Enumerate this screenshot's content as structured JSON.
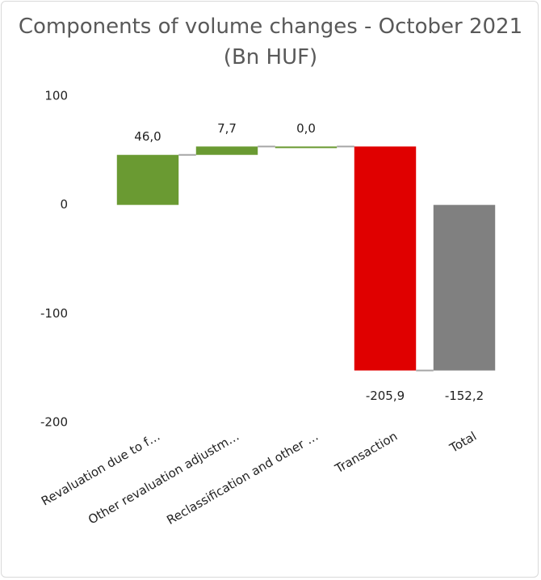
{
  "chart_data": {
    "type": "waterfall",
    "title": "Components of volume changes - October 2021 (Bn HUF)",
    "categories": [
      "Revaluation due to f…",
      "Other revaluation adjustm…",
      "Reclassification and other …",
      "Transaction",
      "Total"
    ],
    "values": [
      46.0,
      7.7,
      0.0,
      -205.9,
      -152.2
    ],
    "value_labels": [
      "46,0",
      "7,7",
      "0,0",
      "-205,9",
      "-152,2"
    ],
    "total": [
      false,
      false,
      false,
      false,
      true
    ],
    "colors": [
      "#6a9a32",
      "#6a9a32",
      "#6a9a32",
      "#e00000",
      "#808080"
    ],
    "ylim": [
      -200,
      100
    ],
    "yticks": [
      -200,
      -100,
      0,
      100
    ],
    "grid": false
  }
}
